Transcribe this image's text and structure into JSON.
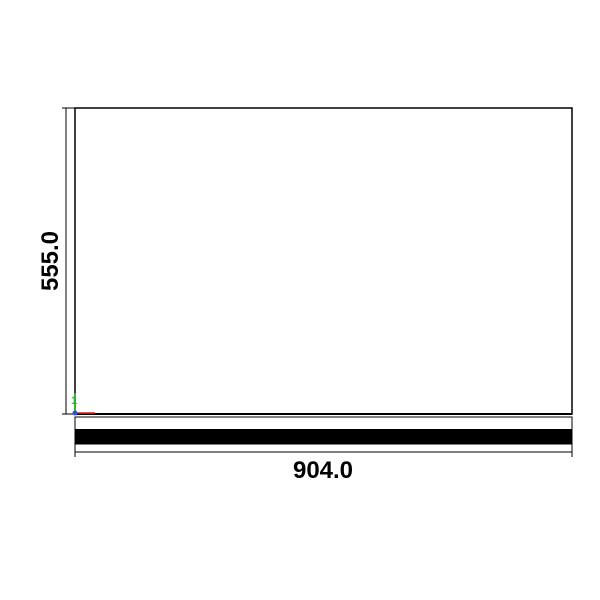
{
  "drawing": {
    "width_dimension": "904.0",
    "height_dimension": "555.0",
    "axis_triad": {
      "y_label": "1",
      "colors": {
        "x_axis": "#e02020",
        "y_axis": "#20c020",
        "origin": "#3050e0"
      }
    },
    "colors": {
      "outline": "#000000",
      "band": "#000000",
      "background": "#ffffff"
    }
  }
}
